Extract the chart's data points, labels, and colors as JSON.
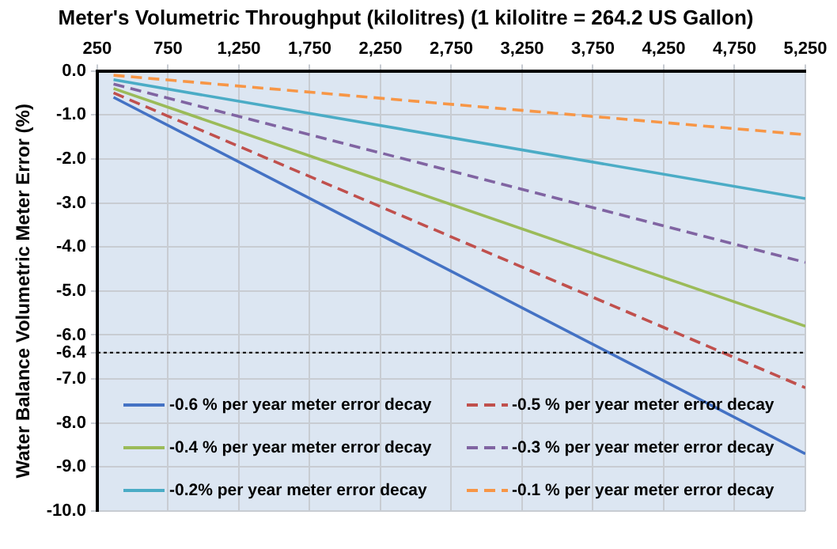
{
  "chart_data": {
    "type": "line",
    "title": "Meter's Volumetric Throughput (kilolitres) (1 kilolitre = 264.2 US Gallon)",
    "ylabel": "Water Balance Volumetric Meter Error (%)",
    "x": [
      365,
      5250
    ],
    "series": [
      {
        "name": "-0.6 % per year meter error decay",
        "color": "#4472c4",
        "values": [
          -0.6,
          -8.7
        ],
        "line_style": "solid"
      },
      {
        "name": "-0.5 % per year meter error decay",
        "color": "#c0504d",
        "values": [
          -0.5,
          -7.2
        ],
        "line_style": "dashed"
      },
      {
        "name": "-0.4 % per year meter error decay",
        "color": "#9bbb59",
        "values": [
          -0.4,
          -5.8
        ],
        "line_style": "solid"
      },
      {
        "name": "-0.3 % per year meter error decay",
        "color": "#8064a2",
        "values": [
          -0.3,
          -4.35
        ],
        "line_style": "dashed"
      },
      {
        "name": "-0.2% per year meter error decay",
        "color": "#4bacc6",
        "values": [
          -0.2,
          -2.9
        ],
        "line_style": "solid"
      },
      {
        "name": "-0.1 % per year meter error decay",
        "color": "#f79646",
        "values": [
          -0.1,
          -1.45
        ],
        "line_style": "dashed"
      }
    ],
    "xlim": [
      250,
      5250
    ],
    "xticks": [
      250,
      750,
      {
        "value": 1250,
        "label": "1,250"
      },
      {
        "value": 1750,
        "label": "1,750"
      },
      {
        "value": 2250,
        "label": "2,250"
      },
      {
        "value": 2750,
        "label": "2,750"
      },
      {
        "value": 3250,
        "label": "3,250"
      },
      {
        "value": 3750,
        "label": "3,750"
      },
      {
        "value": 4250,
        "label": "4,250"
      },
      {
        "value": 4750,
        "label": "4,750"
      },
      {
        "value": 5250,
        "label": "5,250"
      }
    ],
    "ylim": [
      -10,
      0
    ],
    "yticks": [
      {
        "value": 0,
        "label": "0.0"
      },
      {
        "value": -1,
        "label": "-1.0"
      },
      {
        "value": -2,
        "label": "-2.0"
      },
      {
        "value": -3,
        "label": "-3.0"
      },
      {
        "value": -4,
        "label": "-4.0"
      },
      {
        "value": -5,
        "label": "-5.0"
      },
      {
        "value": -6,
        "label": "-6.0"
      },
      {
        "value": -6.4,
        "label": "-6.4"
      },
      {
        "value": -7,
        "label": "-7.0"
      },
      {
        "value": -8,
        "label": "-8.0"
      },
      {
        "value": -9,
        "label": "-9.0"
      },
      {
        "value": -10,
        "label": "-10.0"
      }
    ],
    "ref_lines": [
      {
        "axis": "y",
        "value": -6.4,
        "color": "#000000",
        "line_style": "dotted"
      }
    ],
    "grid": true,
    "legend": "bottom",
    "marker": "none"
  }
}
